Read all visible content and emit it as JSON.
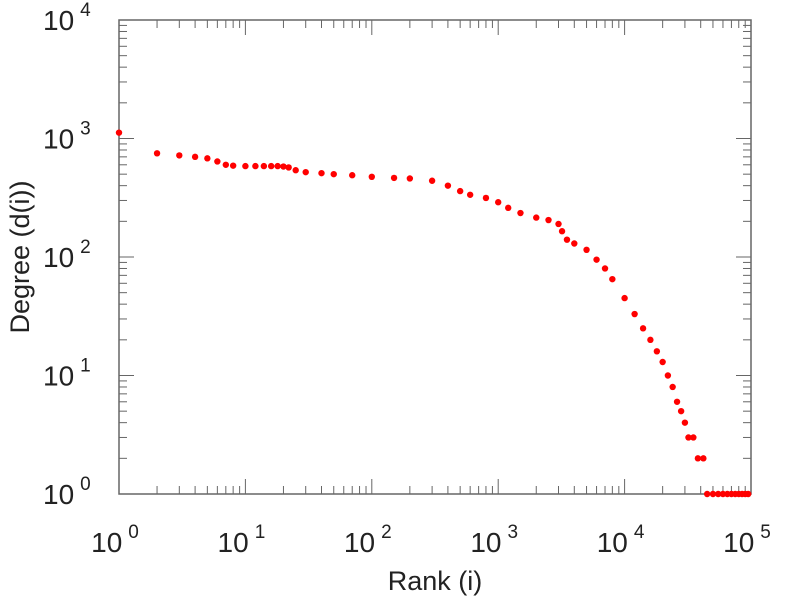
{
  "chart_data": {
    "type": "scatter",
    "title": "",
    "xlabel": "Rank (i)",
    "ylabel": "Degree (d(i))",
    "x_scale": "log",
    "y_scale": "log",
    "xlim": [
      1,
      100000
    ],
    "ylim": [
      1,
      10000
    ],
    "x_tick_labels": [
      {
        "base": "10",
        "exp": "0",
        "value": 1
      },
      {
        "base": "10",
        "exp": "1",
        "value": 10
      },
      {
        "base": "10",
        "exp": "2",
        "value": 100
      },
      {
        "base": "10",
        "exp": "3",
        "value": 1000
      },
      {
        "base": "10",
        "exp": "4",
        "value": 10000
      },
      {
        "base": "10",
        "exp": "5",
        "value": 100000
      }
    ],
    "y_tick_labels": [
      {
        "base": "10",
        "exp": "0",
        "value": 1
      },
      {
        "base": "10",
        "exp": "1",
        "value": 10
      },
      {
        "base": "10",
        "exp": "2",
        "value": 100
      },
      {
        "base": "10",
        "exp": "3",
        "value": 1000
      },
      {
        "base": "10",
        "exp": "4",
        "value": 10000
      }
    ],
    "grid": false,
    "marker_color": "#ff0000",
    "series": [
      {
        "points": [
          [
            1,
            1120
          ],
          [
            2,
            750
          ],
          [
            3,
            720
          ],
          [
            4,
            700
          ],
          [
            5,
            680
          ],
          [
            6,
            640
          ],
          [
            7,
            600
          ],
          [
            8,
            590
          ],
          [
            10,
            585
          ],
          [
            12,
            585
          ],
          [
            14,
            585
          ],
          [
            16,
            585
          ],
          [
            18,
            585
          ],
          [
            20,
            580
          ],
          [
            22,
            570
          ],
          [
            25,
            540
          ],
          [
            30,
            520
          ],
          [
            40,
            510
          ],
          [
            50,
            500
          ],
          [
            70,
            490
          ],
          [
            100,
            475
          ],
          [
            150,
            465
          ],
          [
            200,
            460
          ],
          [
            300,
            440
          ],
          [
            400,
            400
          ],
          [
            500,
            360
          ],
          [
            600,
            335
          ],
          [
            800,
            315
          ],
          [
            1000,
            290
          ],
          [
            1200,
            260
          ],
          [
            1500,
            235
          ],
          [
            2000,
            215
          ],
          [
            2500,
            205
          ],
          [
            3000,
            190
          ],
          [
            3200,
            165
          ],
          [
            3500,
            140
          ],
          [
            4000,
            130
          ],
          [
            5000,
            115
          ],
          [
            6000,
            95
          ],
          [
            7000,
            80
          ],
          [
            8000,
            65
          ],
          [
            10000,
            45
          ],
          [
            12000,
            33
          ],
          [
            14000,
            25
          ],
          [
            16000,
            20
          ],
          [
            18000,
            16
          ],
          [
            20000,
            13
          ],
          [
            22000,
            10
          ],
          [
            24000,
            8
          ],
          [
            26000,
            6
          ],
          [
            28000,
            5
          ],
          [
            30000,
            4
          ],
          [
            32000,
            3
          ],
          [
            35000,
            3
          ],
          [
            38000,
            2
          ],
          [
            42000,
            2
          ],
          [
            45000,
            1
          ],
          [
            50000,
            1
          ],
          [
            55000,
            1
          ],
          [
            60000,
            1
          ],
          [
            65000,
            1
          ],
          [
            70000,
            1
          ],
          [
            75000,
            1
          ],
          [
            80000,
            1
          ],
          [
            85000,
            1
          ],
          [
            90000,
            1
          ],
          [
            95000,
            1
          ]
        ]
      }
    ]
  }
}
